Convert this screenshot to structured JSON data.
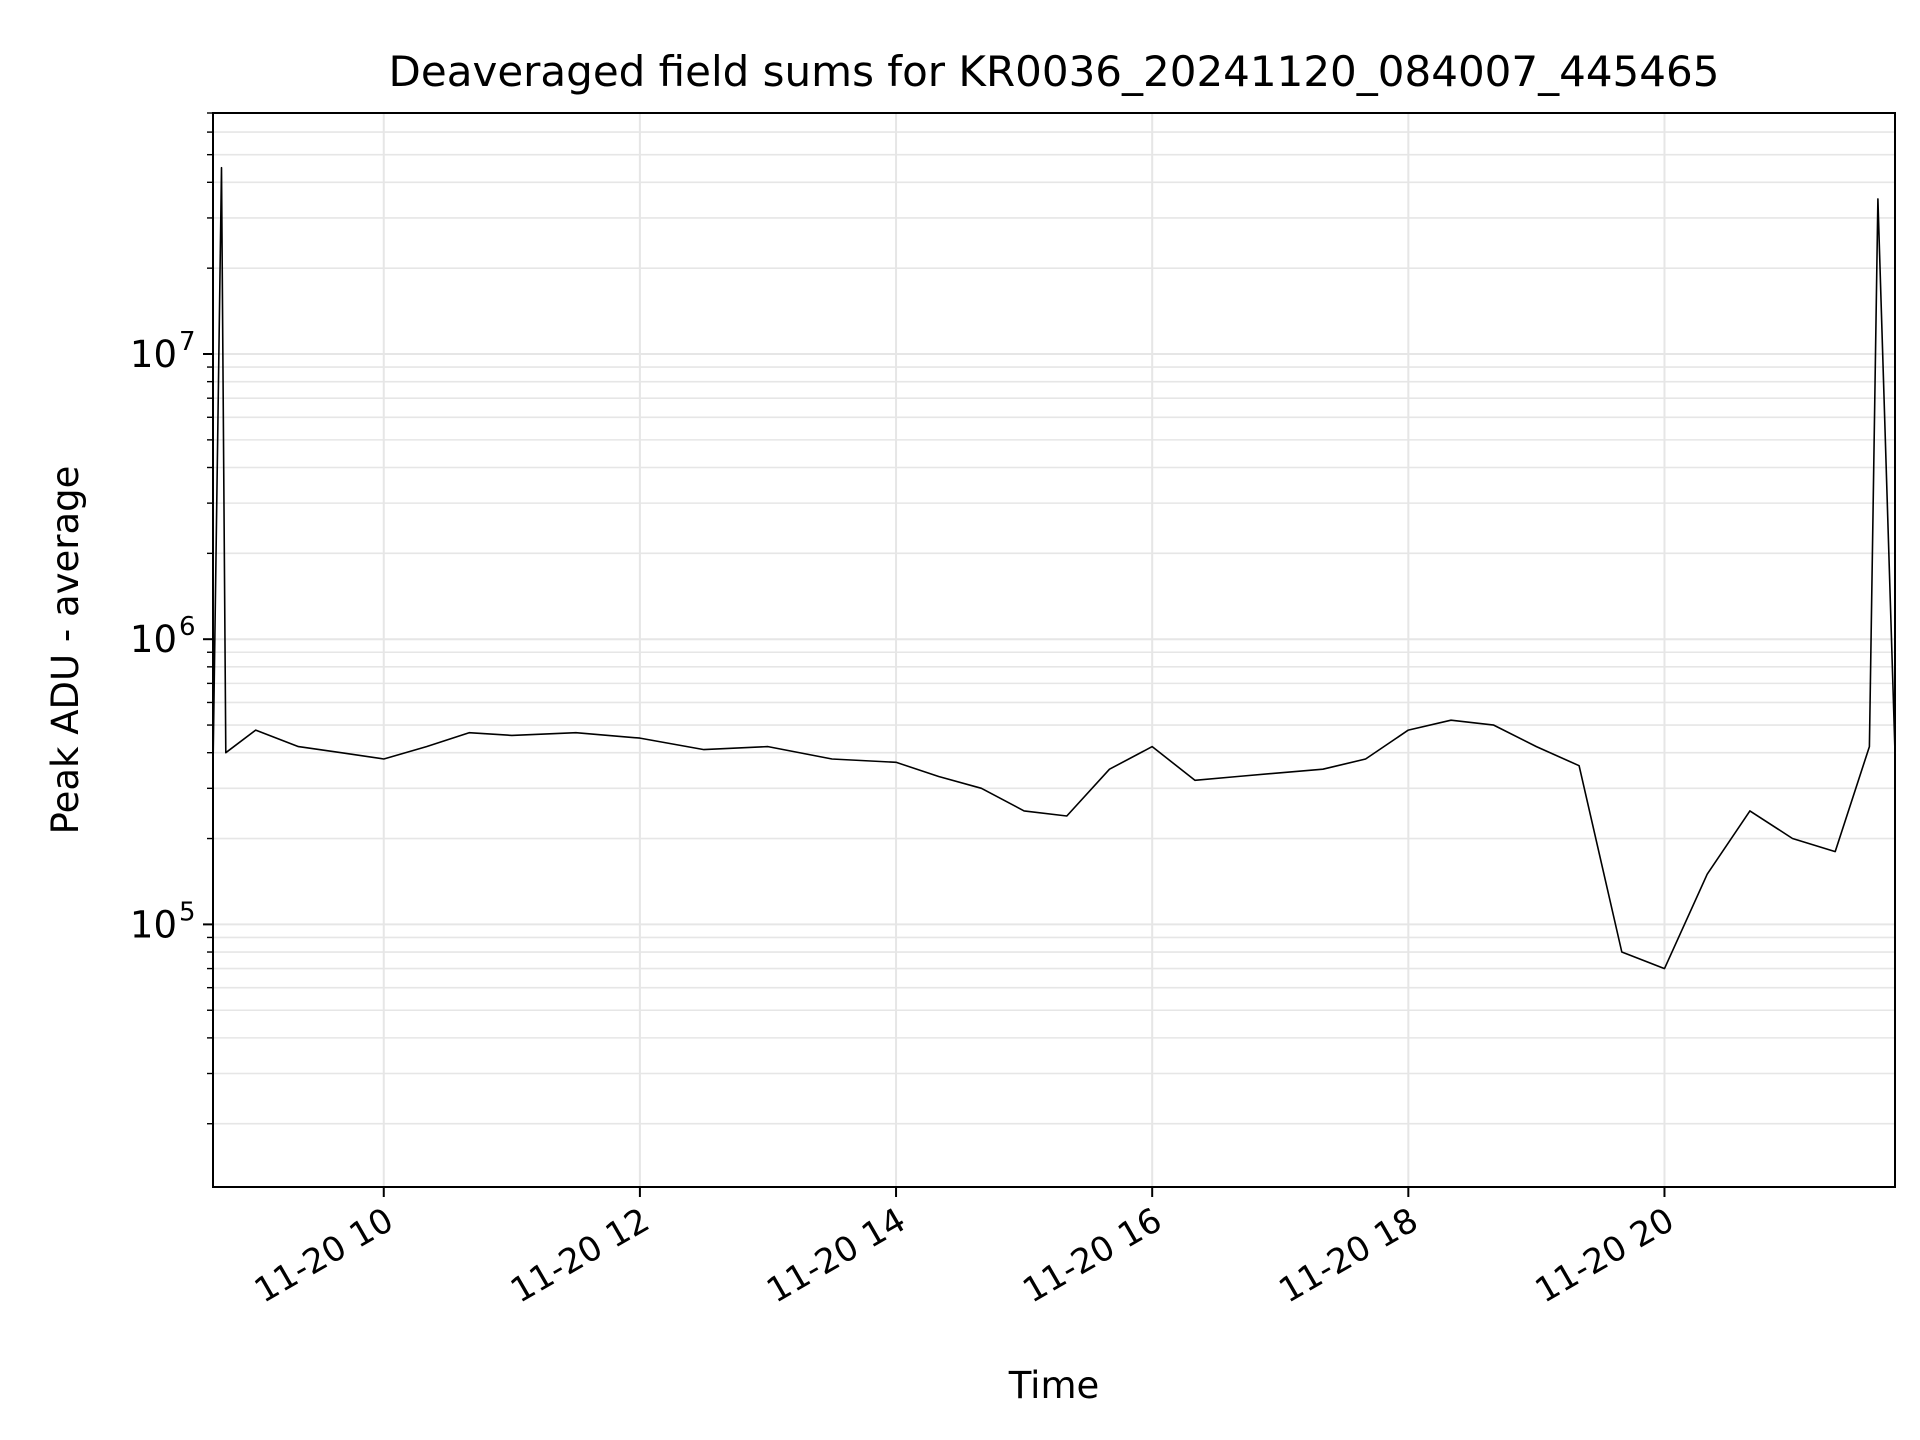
{
  "chart_data": {
    "type": "line",
    "title": "Deaveraged field sums for KR0036_20241120_084007_445465",
    "xlabel": "Time",
    "ylabel": "Peak ADU - average",
    "yscale": "log",
    "grid": true,
    "legend": "none",
    "xlim": [
      "2024-11-20 08:40",
      "2024-11-20 21:48"
    ],
    "ylim": [
      12000,
      70000000
    ],
    "x_ticks": [
      {
        "t": "2024-11-20 10:00",
        "label": "11-20 10"
      },
      {
        "t": "2024-11-20 12:00",
        "label": "11-20 12"
      },
      {
        "t": "2024-11-20 14:00",
        "label": "11-20 14"
      },
      {
        "t": "2024-11-20 16:00",
        "label": "11-20 16"
      },
      {
        "t": "2024-11-20 18:00",
        "label": "11-20 18"
      },
      {
        "t": "2024-11-20 20:00",
        "label": "11-20 20"
      }
    ],
    "y_ticks": [
      {
        "value": 100000,
        "base": "10",
        "exp": "5"
      },
      {
        "value": 1000000,
        "base": "10",
        "exp": "6"
      },
      {
        "value": 10000000,
        "base": "10",
        "exp": "7"
      }
    ],
    "line_color": "#000000",
    "grid_color": "#e6e6e6",
    "series": [
      {
        "x": [
          "2024-11-20 08:40",
          "2024-11-20 08:44",
          "2024-11-20 08:46",
          "2024-11-20 09:00",
          "2024-11-20 09:20",
          "2024-11-20 09:40",
          "2024-11-20 10:00",
          "2024-11-20 10:20",
          "2024-11-20 10:40",
          "2024-11-20 11:00",
          "2024-11-20 11:30",
          "2024-11-20 12:00",
          "2024-11-20 12:30",
          "2024-11-20 13:00",
          "2024-11-20 13:30",
          "2024-11-20 14:00",
          "2024-11-20 14:20",
          "2024-11-20 14:40",
          "2024-11-20 15:00",
          "2024-11-20 15:20",
          "2024-11-20 15:40",
          "2024-11-20 16:00",
          "2024-11-20 16:20",
          "2024-11-20 16:40",
          "2024-11-20 17:00",
          "2024-11-20 17:20",
          "2024-11-20 17:40",
          "2024-11-20 18:00",
          "2024-11-20 18:20",
          "2024-11-20 18:40",
          "2024-11-20 19:00",
          "2024-11-20 19:20",
          "2024-11-20 19:40",
          "2024-11-20 20:00",
          "2024-11-20 20:20",
          "2024-11-20 20:40",
          "2024-11-20 21:00",
          "2024-11-20 21:20",
          "2024-11-20 21:36",
          "2024-11-20 21:40",
          "2024-11-20 21:48"
        ],
        "y": [
          350000,
          45000000,
          400000,
          480000,
          420000,
          400000,
          380000,
          420000,
          470000,
          460000,
          470000,
          450000,
          410000,
          420000,
          380000,
          370000,
          330000,
          300000,
          250000,
          240000,
          350000,
          420000,
          320000,
          330000,
          340000,
          350000,
          380000,
          480000,
          520000,
          500000,
          420000,
          360000,
          80000,
          70000,
          150000,
          250000,
          200000,
          180000,
          420000,
          35000000,
          400000
        ]
      }
    ]
  }
}
